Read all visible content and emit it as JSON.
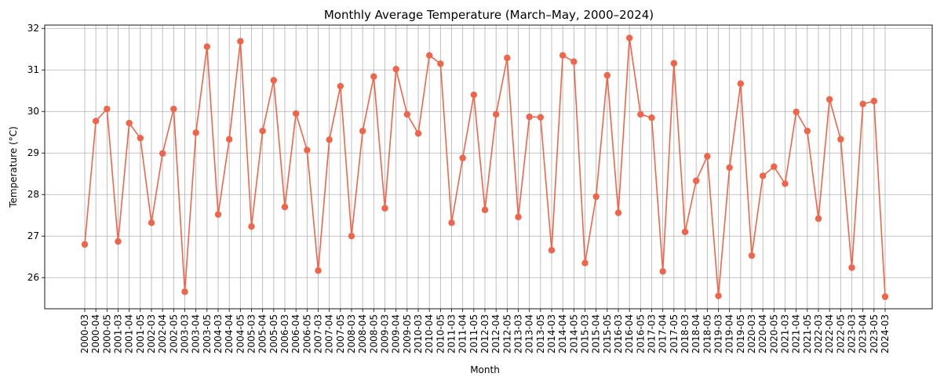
{
  "chart_data": {
    "type": "line",
    "title": "Monthly Average Temperature (March–May, 2000–2024)",
    "xlabel": "Month",
    "ylabel": "Temperature (°C)",
    "ylim": [
      25.25,
      32.08
    ],
    "yticks": [
      26,
      27,
      28,
      29,
      30,
      31,
      32
    ],
    "grid": true,
    "line_color": "#f0654a",
    "categories": [
      "2000-03",
      "2000-04",
      "2000-05",
      "2001-03",
      "2001-04",
      "2001-05",
      "2002-03",
      "2002-04",
      "2002-05",
      "2003-03",
      "2003-04",
      "2003-05",
      "2004-03",
      "2004-04",
      "2004-05",
      "2005-03",
      "2005-04",
      "2005-05",
      "2006-03",
      "2006-04",
      "2006-05",
      "2007-03",
      "2007-04",
      "2007-05",
      "2008-03",
      "2008-04",
      "2008-05",
      "2009-03",
      "2009-04",
      "2009-05",
      "2010-03",
      "2010-04",
      "2010-05",
      "2011-03",
      "2011-04",
      "2011-05",
      "2012-03",
      "2012-04",
      "2012-05",
      "2013-03",
      "2013-04",
      "2013-05",
      "2014-03",
      "2014-04",
      "2014-05",
      "2015-03",
      "2015-04",
      "2015-05",
      "2016-03",
      "2016-04",
      "2016-05",
      "2017-03",
      "2017-04",
      "2017-05",
      "2018-03",
      "2018-04",
      "2018-05",
      "2019-03",
      "2019-04",
      "2019-05",
      "2020-03",
      "2020-04",
      "2020-05",
      "2021-03",
      "2021-04",
      "2021-05",
      "2022-03",
      "2022-04",
      "2022-05",
      "2023-03",
      "2023-04",
      "2023-05",
      "2024-03"
    ],
    "values": [
      26.8,
      29.77,
      30.06,
      26.87,
      29.72,
      29.36,
      27.32,
      28.99,
      30.06,
      25.66,
      29.49,
      31.56,
      27.52,
      29.33,
      31.69,
      27.23,
      29.53,
      30.75,
      27.7,
      29.95,
      29.07,
      26.17,
      29.32,
      30.61,
      27.0,
      29.53,
      30.84,
      27.67,
      31.02,
      29.93,
      29.47,
      31.35,
      31.15,
      27.32,
      28.88,
      30.4,
      27.63,
      29.93,
      31.29,
      27.46,
      29.87,
      29.86,
      26.66,
      31.35,
      31.2,
      26.35,
      27.95,
      30.87,
      27.56,
      31.77,
      29.93,
      29.85,
      26.15,
      31.16,
      27.1,
      28.33,
      28.92,
      25.56,
      28.65,
      30.67,
      26.53,
      28.45,
      28.67,
      28.26,
      29.99,
      29.53,
      27.42,
      30.29,
      29.33,
      26.24,
      30.18,
      30.25,
      25.54
    ]
  }
}
